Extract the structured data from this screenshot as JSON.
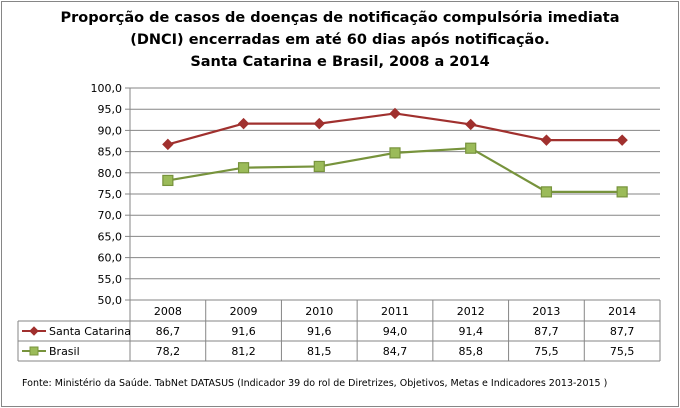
{
  "chart_data": {
    "type": "line",
    "title": [
      "Proporção de casos de doenças de notificação compulsória imediata",
      "(DNCI) encerradas em até 60 dias após notificação.",
      "Santa Catarina e Brasil, 2008 a 2014"
    ],
    "categories": [
      "2008",
      "2009",
      "2010",
      "2011",
      "2012",
      "2013",
      "2014"
    ],
    "ylim": [
      50,
      100
    ],
    "yticks": [
      "50,0",
      "55,0",
      "60,0",
      "65,0",
      "70,0",
      "75,0",
      "80,0",
      "85,0",
      "90,0",
      "95,0",
      "100,0"
    ],
    "grid": true,
    "legend": "data-table",
    "series": [
      {
        "name": "Santa Catarina",
        "values": [
          86.7,
          91.6,
          91.6,
          94.0,
          91.4,
          87.7,
          87.7
        ],
        "labels": [
          "86,7",
          "91,6",
          "91,6",
          "94,0",
          "91,4",
          "87,7",
          "87,7"
        ],
        "color": "#a0302e",
        "fill": "#a0302e",
        "marker": "diamond"
      },
      {
        "name": "Brasil",
        "values": [
          78.2,
          81.2,
          81.5,
          84.7,
          85.8,
          75.5,
          75.5
        ],
        "labels": [
          "78,2",
          "81,2",
          "81,5",
          "84,7",
          "85,8",
          "75,5",
          "75,5"
        ],
        "color": "#77933c",
        "fill": "#9bbb59",
        "marker": "square"
      }
    ],
    "source": "Fonte: Ministério da Saúde. TabNet DATASUS (Indicador 39 do rol de Diretrizes, Objetivos, Metas e Indicadores 2013-2015 )"
  }
}
